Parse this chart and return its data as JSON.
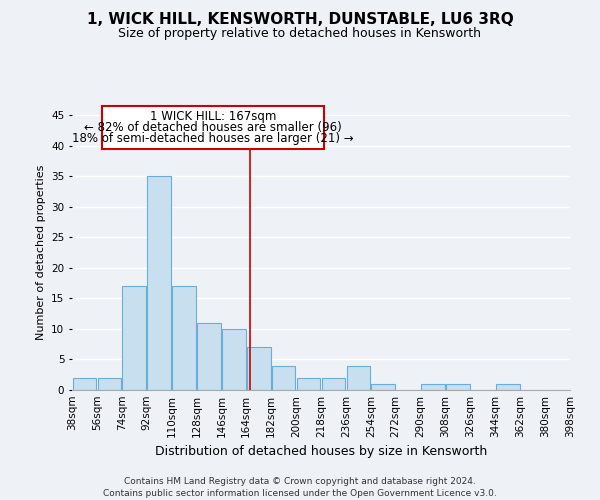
{
  "title": "1, WICK HILL, KENSWORTH, DUNSTABLE, LU6 3RQ",
  "subtitle": "Size of property relative to detached houses in Kensworth",
  "xlabel": "Distribution of detached houses by size in Kensworth",
  "ylabel": "Number of detached properties",
  "bin_labels": [
    "38sqm",
    "56sqm",
    "74sqm",
    "92sqm",
    "110sqm",
    "128sqm",
    "146sqm",
    "164sqm",
    "182sqm",
    "200sqm",
    "218sqm",
    "236sqm",
    "254sqm",
    "272sqm",
    "290sqm",
    "308sqm",
    "326sqm",
    "344sqm",
    "362sqm",
    "380sqm",
    "398sqm"
  ],
  "bin_edges": [
    38,
    56,
    74,
    92,
    110,
    128,
    146,
    164,
    182,
    200,
    218,
    236,
    254,
    272,
    290,
    308,
    326,
    344,
    362,
    380,
    398
  ],
  "bar_heights": [
    2,
    2,
    17,
    35,
    17,
    11,
    10,
    7,
    4,
    2,
    2,
    4,
    1,
    0,
    1,
    1,
    0,
    1,
    0,
    0
  ],
  "bar_color": "#c8dff0",
  "bar_edge_color": "#6aaed6",
  "vline_x": 167,
  "vline_color": "#cc0000",
  "ylim": [
    0,
    45
  ],
  "yticks": [
    0,
    5,
    10,
    15,
    20,
    25,
    30,
    35,
    40,
    45
  ],
  "annotation_title": "1 WICK HILL: 167sqm",
  "annotation_line1": "← 82% of detached houses are smaller (96)",
  "annotation_line2": "18% of semi-detached houses are larger (21) →",
  "footnote1": "Contains HM Land Registry data © Crown copyright and database right 2024.",
  "footnote2": "Contains public sector information licensed under the Open Government Licence v3.0.",
  "background_color": "#eef2f7",
  "plot_background": "#eef2f7",
  "grid_color": "#ffffff",
  "title_fontsize": 11,
  "subtitle_fontsize": 9,
  "xlabel_fontsize": 9,
  "ylabel_fontsize": 8,
  "tick_fontsize": 7.5,
  "annotation_fontsize": 8.5,
  "footnote_fontsize": 6.5
}
